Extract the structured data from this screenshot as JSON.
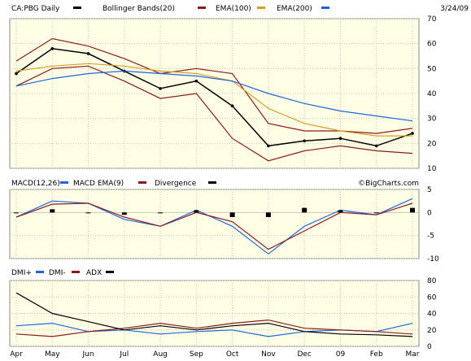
{
  "header": {
    "symbol_label": "CA:PBG Daily",
    "date": "3/24/09",
    "watermark": "©BigCharts.com"
  },
  "colors": {
    "panel_bg": "#ffffe6",
    "grid": "#c8c8b4",
    "price": "#000000",
    "bollinger": "#8b1a1a",
    "ema100": "#d4a020",
    "ema200": "#1e64dc",
    "macd": "#1e64dc",
    "macd_ema": "#8b1a1a",
    "divergence": "#000000",
    "dmi_plus": "#1e64dc",
    "dmi_minus": "#8b1a1a",
    "adx": "#000000"
  },
  "chart_data": [
    {
      "type": "line",
      "panel": "price",
      "legend": [
        "CA:PBG Daily",
        "Bollinger Bands(20)",
        "EMA(100)",
        "EMA(200)"
      ],
      "ylim": [
        10,
        70
      ],
      "yticks": [
        10,
        20,
        30,
        40,
        50,
        60,
        70
      ],
      "x": [
        "Apr",
        "May",
        "Jun",
        "Jul",
        "Aug",
        "Sep",
        "Oct",
        "Nov",
        "Dec",
        "09",
        "Feb",
        "Mar"
      ],
      "series": [
        {
          "name": "CA:PBG Daily",
          "values": [
            48,
            58,
            56,
            49,
            42,
            45,
            35,
            19,
            21,
            22,
            19,
            24
          ]
        },
        {
          "name": "Bollinger Bands(20)",
          "band": "upper",
          "values": [
            53,
            62,
            59,
            54,
            48,
            50,
            48,
            28,
            25,
            25,
            24,
            26
          ]
        },
        {
          "name": "Bollinger Bands(20)",
          "band": "lower",
          "values": [
            43,
            50,
            51,
            45,
            38,
            40,
            22,
            13,
            17,
            19,
            17,
            16
          ]
        },
        {
          "name": "EMA(100)",
          "values": [
            49,
            51,
            52,
            51,
            49,
            48,
            45,
            34,
            28,
            25,
            23,
            23
          ]
        },
        {
          "name": "EMA(200)",
          "values": [
            43,
            46,
            48,
            49,
            48,
            47,
            45,
            40,
            36,
            33,
            31,
            29
          ]
        }
      ]
    },
    {
      "type": "line",
      "panel": "macd",
      "legend": [
        "MACD(12,26)",
        "MACD EMA(9)",
        "Divergence"
      ],
      "ylim": [
        -10,
        5
      ],
      "yticks": [
        -10,
        -5,
        0,
        5
      ],
      "x": [
        "Apr",
        "May",
        "Jun",
        "Jul",
        "Aug",
        "Sep",
        "Oct",
        "Nov",
        "Dec",
        "09",
        "Feb",
        "Mar"
      ],
      "series": [
        {
          "name": "MACD(12,26)",
          "values": [
            -1,
            2.5,
            2,
            -1.5,
            -3,
            0.5,
            -3,
            -9,
            -3,
            0.5,
            -0.5,
            3
          ]
        },
        {
          "name": "MACD EMA(9)",
          "values": [
            -1,
            1.8,
            2,
            -1,
            -3,
            0,
            -2,
            -8,
            -4,
            0,
            -0.5,
            2
          ]
        },
        {
          "name": "Divergence",
          "values": [
            0,
            0.7,
            0,
            -0.5,
            0,
            0.5,
            -1,
            -1,
            1,
            0.5,
            0,
            1
          ]
        }
      ]
    },
    {
      "type": "line",
      "panel": "dmi",
      "legend": [
        "DMI+",
        "DMI-",
        "ADX"
      ],
      "ylim": [
        0,
        80
      ],
      "yticks": [
        0,
        20,
        40,
        60,
        80
      ],
      "x": [
        "Apr",
        "May",
        "Jun",
        "Jul",
        "Aug",
        "Sep",
        "Oct",
        "Nov",
        "Dec",
        "09",
        "Feb",
        "Mar"
      ],
      "series": [
        {
          "name": "DMI+",
          "values": [
            25,
            28,
            18,
            20,
            15,
            18,
            20,
            12,
            18,
            20,
            18,
            28
          ]
        },
        {
          "name": "DMI-",
          "values": [
            15,
            12,
            18,
            22,
            28,
            22,
            28,
            32,
            22,
            20,
            18,
            15
          ]
        },
        {
          "name": "ADX",
          "values": [
            65,
            40,
            30,
            20,
            25,
            20,
            25,
            28,
            18,
            15,
            14,
            12
          ]
        }
      ]
    }
  ],
  "x_axis": {
    "labels": [
      "Apr",
      "May",
      "Jun",
      "Jul",
      "Aug",
      "Sep",
      "Oct",
      "Nov",
      "Dec",
      "09",
      "Feb",
      "Mar"
    ]
  }
}
